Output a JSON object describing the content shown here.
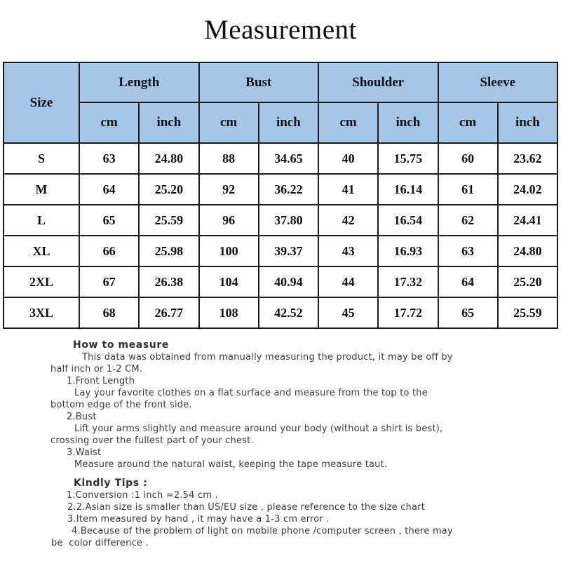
{
  "title": "Measurement",
  "size_table": {
    "corner_label": "Size",
    "group_headers": [
      "Length",
      "Bust",
      "Shoulder",
      "Sleeve"
    ],
    "unit_headers": [
      "cm",
      "inch",
      "cm",
      "inch",
      "cm",
      "inch",
      "cm",
      "inch"
    ],
    "rows": [
      {
        "size": "S",
        "values": [
          "63",
          "24.80",
          "88",
          "34.65",
          "40",
          "15.75",
          "60",
          "23.62"
        ]
      },
      {
        "size": "M",
        "values": [
          "64",
          "25.20",
          "92",
          "36.22",
          "41",
          "16.14",
          "61",
          "24.02"
        ]
      },
      {
        "size": "L",
        "values": [
          "65",
          "25.59",
          "96",
          "37.80",
          "42",
          "16.54",
          "62",
          "24.41"
        ]
      },
      {
        "size": "XL",
        "values": [
          "66",
          "25.98",
          "100",
          "39.37",
          "43",
          "16.93",
          "63",
          "24.80"
        ]
      },
      {
        "size": "2XL",
        "values": [
          "67",
          "26.38",
          "104",
          "40.94",
          "44",
          "17.32",
          "64",
          "25.20"
        ]
      },
      {
        "size": "3XL",
        "values": [
          "68",
          "26.77",
          "108",
          "42.52",
          "45",
          "17.72",
          "65",
          "25.59"
        ]
      }
    ]
  },
  "how_to_measure": {
    "heading": "How to measure",
    "lines": [
      {
        "text": "This data was obtained from manually measuring the product, it may be off by",
        "indent": 117
      },
      {
        "text": "half inch or 1-2 CM.",
        "indent": 72
      },
      {
        "text": "1.Front Length",
        "indent": 95
      },
      {
        "text": "Lay your favorite clothes on a flat surface and measure from the top to the",
        "indent": 106
      },
      {
        "text": "bottom edge of the front side.",
        "indent": 72
      },
      {
        "text": "2.Bust",
        "indent": 95
      },
      {
        "text": "Lift your arms slightly and measure around your body (without a shirt is best),",
        "indent": 106
      },
      {
        "text": "crossing over the fullest part of your chest.",
        "indent": 72
      },
      {
        "text": "3.Waist",
        "indent": 95
      },
      {
        "text": "Measure around the natural waist, keeping the tape measure taut.",
        "indent": 106
      }
    ]
  },
  "kindly_tips": {
    "heading": "Kindly Tips :",
    "lines": [
      {
        "text": "1.Conversion :1 inch =2.54 cm .",
        "indent": 95
      },
      {
        "text": "2.2.Asian size is smaller than US/EU size , please reference to the size chart",
        "indent": 96
      },
      {
        "text": "3.Item measured by hand , it may have a 1-3 cm error .",
        "indent": 96
      },
      {
        "text": "4.Because of the problem of light on mobile phone /computer screen , there may",
        "indent": 102
      },
      {
        "text": "be  color difference .",
        "indent": 73
      }
    ]
  },
  "colors": {
    "header_bg": "#a4c7e8",
    "table_border": "#1c1c1c",
    "body_text": "#3b3b3b",
    "table_text": "#101010"
  }
}
